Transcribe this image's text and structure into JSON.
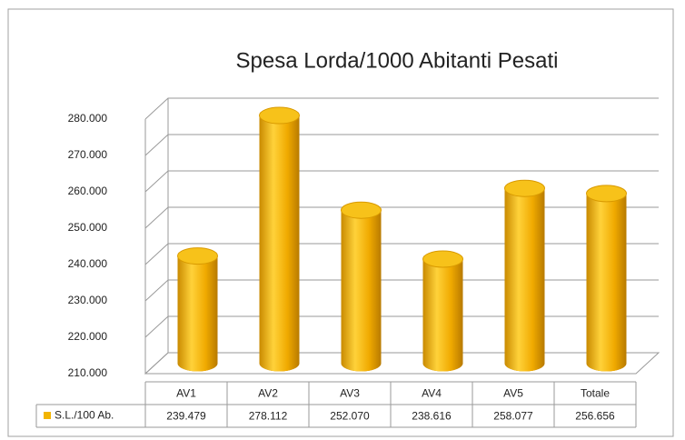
{
  "chart_data": {
    "type": "bar3d",
    "title": "Spesa Lorda/1000 Abitanti Pesati",
    "categories": [
      "AV1",
      "AV2",
      "AV3",
      "AV4",
      "AV5",
      "Totale"
    ],
    "series": [
      {
        "name": "S.L./100 Ab.",
        "color": "#f2b400",
        "values": [
          239479,
          278112,
          252070,
          238616,
          258077,
          256656
        ],
        "value_labels": [
          "239.479",
          "278.112",
          "252.070",
          "238.616",
          "258.077",
          "256.656"
        ]
      }
    ],
    "ylim": [
      210000,
      280000
    ],
    "yticks": [
      {
        "value": 210000,
        "label": "210.000"
      },
      {
        "value": 220000,
        "label": "220.000"
      },
      {
        "value": 230000,
        "label": "230.000"
      },
      {
        "value": 240000,
        "label": "240.000"
      },
      {
        "value": 250000,
        "label": "250.000"
      },
      {
        "value": 260000,
        "label": "260.000"
      },
      {
        "value": 270000,
        "label": "270.000"
      },
      {
        "value": 280000,
        "label": "280.000"
      }
    ],
    "grid": true
  }
}
